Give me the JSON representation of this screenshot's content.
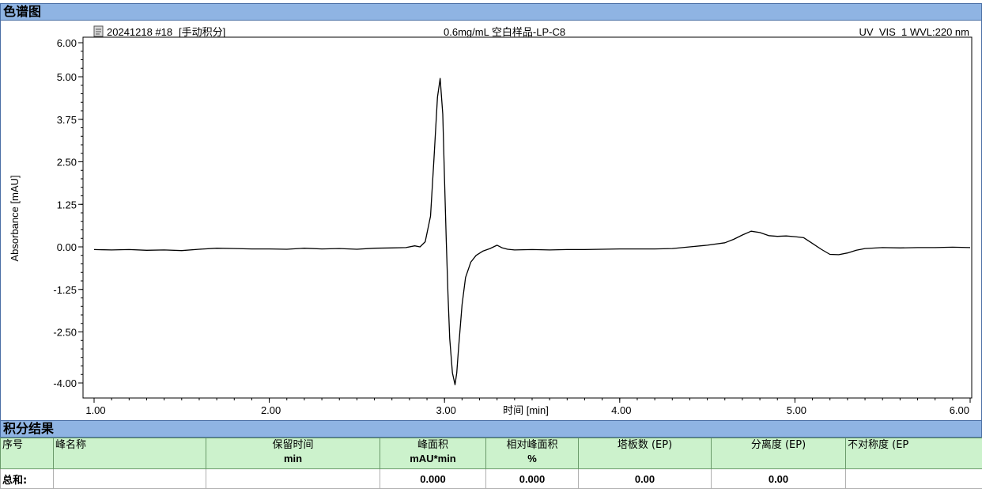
{
  "chart_section_title": "色谱图",
  "info": {
    "run_id": "20241218 #18",
    "integration_mode": "[手动积分]",
    "sample": "0.6mg/mL 空白样品-LP-C8",
    "detector": "UV_VIS_1 WVL:220 nm"
  },
  "chart_data": {
    "type": "line",
    "xlabel": "时间 [min]",
    "ylabel": "Absorbance [mAU]",
    "xlim": [
      1.0,
      6.0
    ],
    "ylim": [
      -4.0,
      6.0
    ],
    "x_ticks": [
      "1.00",
      "2.00",
      "3.00",
      "4.00",
      "5.00",
      "6.00"
    ],
    "x_tick_values": [
      1.0,
      2.0,
      3.0,
      4.0,
      5.0,
      6.0
    ],
    "y_ticks": [
      "6.00",
      "5.00",
      "3.75",
      "2.50",
      "1.25",
      "0.00",
      "-1.25",
      "-2.50",
      "-4.00"
    ],
    "y_tick_values": [
      6.0,
      5.0,
      3.75,
      2.5,
      1.25,
      0.0,
      -1.25,
      -2.5,
      -4.0
    ],
    "grid": false,
    "series": [
      {
        "color": "#000000",
        "x": [
          1.0,
          1.1,
          1.2,
          1.3,
          1.4,
          1.5,
          1.6,
          1.7,
          1.8,
          1.9,
          2.0,
          2.1,
          2.2,
          2.3,
          2.4,
          2.5,
          2.6,
          2.7,
          2.78,
          2.83,
          2.86,
          2.89,
          2.92,
          2.94,
          2.96,
          2.975,
          2.99,
          3.0,
          3.01,
          3.02,
          3.03,
          3.045,
          3.06,
          3.07,
          3.08,
          3.1,
          3.12,
          3.15,
          3.18,
          3.22,
          3.26,
          3.3,
          3.33,
          3.36,
          3.4,
          3.5,
          3.6,
          3.7,
          3.8,
          3.9,
          4.0,
          4.1,
          4.2,
          4.3,
          4.4,
          4.5,
          4.6,
          4.65,
          4.7,
          4.75,
          4.8,
          4.85,
          4.9,
          4.95,
          5.0,
          5.05,
          5.1,
          5.15,
          5.2,
          5.25,
          5.3,
          5.35,
          5.4,
          5.5,
          5.6,
          5.7,
          5.8,
          5.9,
          6.0
        ],
        "y": [
          -0.08,
          -0.09,
          -0.08,
          -0.1,
          -0.09,
          -0.11,
          -0.07,
          -0.04,
          -0.05,
          -0.06,
          -0.06,
          -0.07,
          -0.04,
          -0.06,
          -0.05,
          -0.07,
          -0.04,
          -0.03,
          -0.02,
          0.03,
          0.0,
          0.15,
          0.9,
          2.6,
          4.4,
          4.95,
          3.9,
          2.0,
          0.2,
          -1.4,
          -2.7,
          -3.7,
          -4.05,
          -3.7,
          -3.0,
          -1.7,
          -0.9,
          -0.45,
          -0.25,
          -0.12,
          -0.05,
          0.05,
          -0.03,
          -0.07,
          -0.09,
          -0.08,
          -0.09,
          -0.08,
          -0.08,
          -0.07,
          -0.06,
          -0.06,
          -0.06,
          -0.05,
          0.0,
          0.05,
          0.12,
          0.22,
          0.35,
          0.46,
          0.42,
          0.33,
          0.31,
          0.32,
          0.3,
          0.27,
          0.1,
          -0.07,
          -0.22,
          -0.23,
          -0.18,
          -0.1,
          -0.05,
          -0.02,
          -0.03,
          -0.02,
          -0.02,
          -0.01,
          -0.02
        ]
      }
    ]
  },
  "table_section_title": "积分结果",
  "table": {
    "columns": [
      {
        "label": "序号",
        "unit": ""
      },
      {
        "label": "峰名称",
        "unit": ""
      },
      {
        "label": "保留时间",
        "unit": "min"
      },
      {
        "label": "峰面积",
        "unit": "mAU*min"
      },
      {
        "label": "相对峰面积",
        "unit": "%"
      },
      {
        "label": "塔板数 (EP)",
        "unit": ""
      },
      {
        "label": "分离度 (EP)",
        "unit": ""
      },
      {
        "label": "不对称度 (EP",
        "unit": ""
      }
    ],
    "total_row": [
      "总和:",
      "",
      "",
      "0.000",
      "0.000",
      "0.00",
      "0.00",
      ""
    ]
  }
}
